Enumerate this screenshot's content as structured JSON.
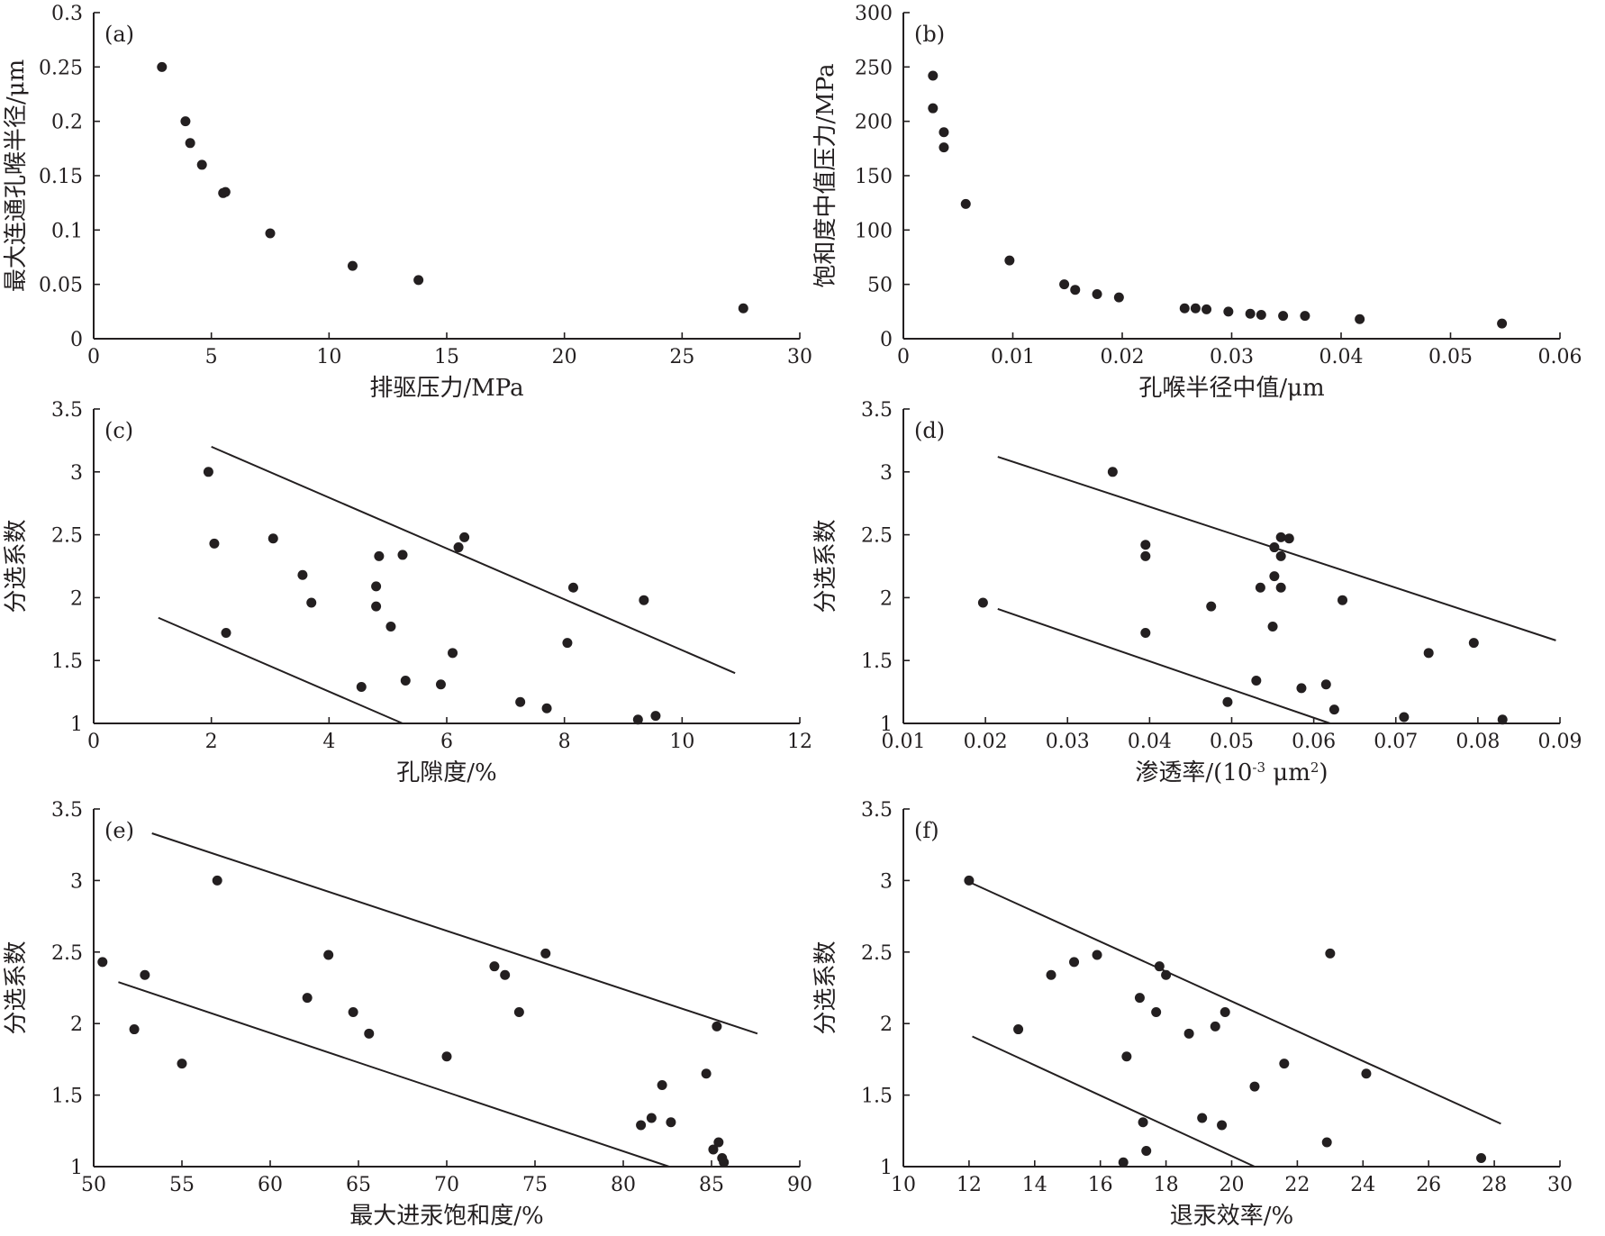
{
  "chart_data": [
    {
      "panel": "(a)",
      "type": "scatter",
      "xlabel": "排驱压力/MPa",
      "ylabel": "最大连通孔喉半径/μm",
      "xlim": [
        0,
        30
      ],
      "ylim": [
        0,
        0.3
      ],
      "xticks": [
        0,
        5,
        10,
        15,
        20,
        25,
        30
      ],
      "yticks": [
        0,
        0.05,
        0.1,
        0.15,
        0.2,
        0.25,
        0.3
      ],
      "xtick_labels": [
        "0",
        "5",
        "10",
        "15",
        "20",
        "25",
        "30"
      ],
      "ytick_labels": [
        "0",
        "0.05",
        "0.1",
        "0.15",
        "0.2",
        "0.25",
        "0.3"
      ],
      "grid": false,
      "points": [
        [
          2.9,
          0.25
        ],
        [
          3.9,
          0.2
        ],
        [
          4.1,
          0.18
        ],
        [
          4.6,
          0.16
        ],
        [
          5.5,
          0.134
        ],
        [
          5.6,
          0.135
        ],
        [
          7.5,
          0.097
        ],
        [
          11.0,
          0.067
        ],
        [
          13.8,
          0.054
        ],
        [
          27.6,
          0.028
        ]
      ],
      "trendlines": []
    },
    {
      "panel": "(b)",
      "type": "scatter",
      "xlabel": "孔喉半径中值/μm",
      "ylabel": "饱和度中值压力/MPa",
      "xlim": [
        0,
        0.06
      ],
      "ylim": [
        0,
        300
      ],
      "xticks": [
        0,
        0.01,
        0.02,
        0.03,
        0.04,
        0.05,
        0.06
      ],
      "yticks": [
        0,
        50,
        100,
        150,
        200,
        250,
        300
      ],
      "xtick_labels": [
        "0",
        "0.01",
        "0.02",
        "0.03",
        "0.04",
        "0.05",
        "0.06"
      ],
      "ytick_labels": [
        "0",
        "50",
        "100",
        "150",
        "200",
        "250",
        "300"
      ],
      "grid": false,
      "points": [
        [
          0.0027,
          242
        ],
        [
          0.0027,
          212
        ],
        [
          0.0037,
          190
        ],
        [
          0.0037,
          176
        ],
        [
          0.0057,
          124
        ],
        [
          0.0097,
          72
        ],
        [
          0.0147,
          50
        ],
        [
          0.0157,
          45
        ],
        [
          0.0177,
          41
        ],
        [
          0.0197,
          38
        ],
        [
          0.0257,
          28
        ],
        [
          0.0267,
          28
        ],
        [
          0.0277,
          27
        ],
        [
          0.0297,
          25
        ],
        [
          0.0317,
          23
        ],
        [
          0.0327,
          22
        ],
        [
          0.0347,
          21
        ],
        [
          0.0367,
          21
        ],
        [
          0.0417,
          18
        ],
        [
          0.0547,
          14
        ]
      ],
      "trendlines": []
    },
    {
      "panel": "(c)",
      "type": "scatter",
      "xlabel": "孔隙度/%",
      "ylabel": "分选系数",
      "xlim": [
        0,
        12
      ],
      "ylim": [
        1,
        3.5
      ],
      "xticks": [
        0,
        2,
        4,
        6,
        8,
        10,
        12
      ],
      "yticks": [
        1,
        1.5,
        2,
        2.5,
        3,
        3.5
      ],
      "xtick_labels": [
        "0",
        "2",
        "4",
        "6",
        "8",
        "10",
        "12"
      ],
      "ytick_labels": [
        "1",
        "1.5",
        "2",
        "2.5",
        "3",
        "3.5"
      ],
      "grid": false,
      "points": [
        [
          1.95,
          3.0
        ],
        [
          2.05,
          2.43
        ],
        [
          2.25,
          1.72
        ],
        [
          3.05,
          2.47
        ],
        [
          3.55,
          2.18
        ],
        [
          3.7,
          1.96
        ],
        [
          4.55,
          1.29
        ],
        [
          4.8,
          2.09
        ],
        [
          4.8,
          1.93
        ],
        [
          4.85,
          2.33
        ],
        [
          5.05,
          1.77
        ],
        [
          5.25,
          2.34
        ],
        [
          5.3,
          1.34
        ],
        [
          5.9,
          1.31
        ],
        [
          6.1,
          1.56
        ],
        [
          6.2,
          2.4
        ],
        [
          6.3,
          2.48
        ],
        [
          7.25,
          1.17
        ],
        [
          7.7,
          1.12
        ],
        [
          8.05,
          1.64
        ],
        [
          8.15,
          2.08
        ],
        [
          9.25,
          1.03
        ],
        [
          9.35,
          1.98
        ],
        [
          9.55,
          1.06
        ]
      ],
      "trendlines": [
        [
          [
            2.0,
            3.2
          ],
          [
            10.9,
            1.4
          ]
        ],
        [
          [
            1.1,
            1.84
          ],
          [
            5.25,
            1.0
          ]
        ]
      ]
    },
    {
      "panel": "(d)",
      "type": "scatter",
      "xlabel": "渗透率/(10",
      "xlabel_sup": "-3",
      "xlabel_mid": " μm",
      "xlabel_sup2": "2",
      "xlabel_end": ")",
      "ylabel": "分选系数",
      "xlim": [
        0.01,
        0.09
      ],
      "ylim": [
        1,
        3.5
      ],
      "xticks": [
        0.01,
        0.02,
        0.03,
        0.04,
        0.05,
        0.06,
        0.07,
        0.08,
        0.09
      ],
      "yticks": [
        1,
        1.5,
        2,
        2.5,
        3,
        3.5
      ],
      "xtick_labels": [
        "0.01",
        "0.02",
        "0.03",
        "0.04",
        "0.05",
        "0.06",
        "0.07",
        "0.08",
        "0.09"
      ],
      "ytick_labels": [
        "1",
        "1.5",
        "2",
        "2.5",
        "3",
        "3.5"
      ],
      "grid": false,
      "points": [
        [
          0.0197,
          1.96
        ],
        [
          0.0355,
          3.0
        ],
        [
          0.0395,
          2.42
        ],
        [
          0.0395,
          2.33
        ],
        [
          0.0395,
          1.72
        ],
        [
          0.0475,
          1.93
        ],
        [
          0.0495,
          1.17
        ],
        [
          0.053,
          1.34
        ],
        [
          0.0535,
          2.08
        ],
        [
          0.055,
          1.77
        ],
        [
          0.0552,
          2.17
        ],
        [
          0.0552,
          2.4
        ],
        [
          0.056,
          2.48
        ],
        [
          0.056,
          2.33
        ],
        [
          0.056,
          2.08
        ],
        [
          0.057,
          2.47
        ],
        [
          0.0585,
          1.28
        ],
        [
          0.0615,
          1.31
        ],
        [
          0.0625,
          1.11
        ],
        [
          0.0635,
          1.98
        ],
        [
          0.071,
          1.05
        ],
        [
          0.074,
          1.56
        ],
        [
          0.0795,
          1.64
        ],
        [
          0.083,
          1.03
        ]
      ],
      "trendlines": [
        [
          [
            0.0215,
            3.12
          ],
          [
            0.0895,
            1.66
          ]
        ],
        [
          [
            0.0215,
            1.91
          ],
          [
            0.062,
            1.0
          ]
        ]
      ]
    },
    {
      "panel": "(e)",
      "type": "scatter",
      "xlabel": "最大进汞饱和度/%",
      "ylabel": "分选系数",
      "xlim": [
        50,
        90
      ],
      "ylim": [
        1,
        3.5
      ],
      "xticks": [
        50,
        55,
        60,
        65,
        70,
        75,
        80,
        85,
        90
      ],
      "yticks": [
        1,
        1.5,
        2,
        2.5,
        3,
        3.5
      ],
      "xtick_labels": [
        "50",
        "55",
        "60",
        "65",
        "70",
        "75",
        "80",
        "85",
        "90"
      ],
      "ytick_labels": [
        "1",
        "1.5",
        "2",
        "2.5",
        "3",
        "3.5"
      ],
      "grid": false,
      "points": [
        [
          50.5,
          2.43
        ],
        [
          52.3,
          1.96
        ],
        [
          52.9,
          2.34
        ],
        [
          55.0,
          1.72
        ],
        [
          57.0,
          3.0
        ],
        [
          62.1,
          2.18
        ],
        [
          63.3,
          2.48
        ],
        [
          64.7,
          2.08
        ],
        [
          65.6,
          1.93
        ],
        [
          70.0,
          1.77
        ],
        [
          72.7,
          2.4
        ],
        [
          73.3,
          2.34
        ],
        [
          74.1,
          2.08
        ],
        [
          75.6,
          2.49
        ],
        [
          81.0,
          1.29
        ],
        [
          81.6,
          1.34
        ],
        [
          82.2,
          1.57
        ],
        [
          82.7,
          1.31
        ],
        [
          84.7,
          1.65
        ],
        [
          85.1,
          1.12
        ],
        [
          85.3,
          1.98
        ],
        [
          85.4,
          1.17
        ],
        [
          85.6,
          1.06
        ],
        [
          85.7,
          1.03
        ]
      ],
      "trendlines": [
        [
          [
            53.3,
            3.33
          ],
          [
            87.6,
            1.93
          ]
        ],
        [
          [
            51.4,
            2.29
          ],
          [
            82.6,
            1.0
          ]
        ]
      ]
    },
    {
      "panel": "(f)",
      "type": "scatter",
      "xlabel": "退汞效率/%",
      "ylabel": "分选系数",
      "xlim": [
        10,
        30
      ],
      "ylim": [
        1,
        3.5
      ],
      "xticks": [
        10,
        12,
        14,
        16,
        18,
        20,
        22,
        24,
        26,
        28,
        30
      ],
      "yticks": [
        1,
        1.5,
        2,
        2.5,
        3,
        3.5
      ],
      "xtick_labels": [
        "10",
        "12",
        "14",
        "16",
        "18",
        "20",
        "22",
        "24",
        "26",
        "28",
        "30"
      ],
      "ytick_labels": [
        "1",
        "1.5",
        "2",
        "2.5",
        "3",
        "3.5"
      ],
      "grid": false,
      "points": [
        [
          12.0,
          3.0
        ],
        [
          13.5,
          1.96
        ],
        [
          14.5,
          2.34
        ],
        [
          15.2,
          2.43
        ],
        [
          15.9,
          2.48
        ],
        [
          16.7,
          1.03
        ],
        [
          16.8,
          1.77
        ],
        [
          17.2,
          2.18
        ],
        [
          17.3,
          1.31
        ],
        [
          17.4,
          1.11
        ],
        [
          17.7,
          2.08
        ],
        [
          17.8,
          2.4
        ],
        [
          18.0,
          2.34
        ],
        [
          18.7,
          1.93
        ],
        [
          19.1,
          1.34
        ],
        [
          19.5,
          1.98
        ],
        [
          19.7,
          1.29
        ],
        [
          19.8,
          2.08
        ],
        [
          20.7,
          1.56
        ],
        [
          21.6,
          1.72
        ],
        [
          22.9,
          1.17
        ],
        [
          23.0,
          2.49
        ],
        [
          24.1,
          1.65
        ],
        [
          27.6,
          1.06
        ]
      ],
      "trendlines": [
        [
          [
            12.0,
            2.99
          ],
          [
            28.2,
            1.3
          ]
        ],
        [
          [
            12.1,
            1.91
          ],
          [
            20.7,
            1.0
          ]
        ]
      ]
    }
  ]
}
